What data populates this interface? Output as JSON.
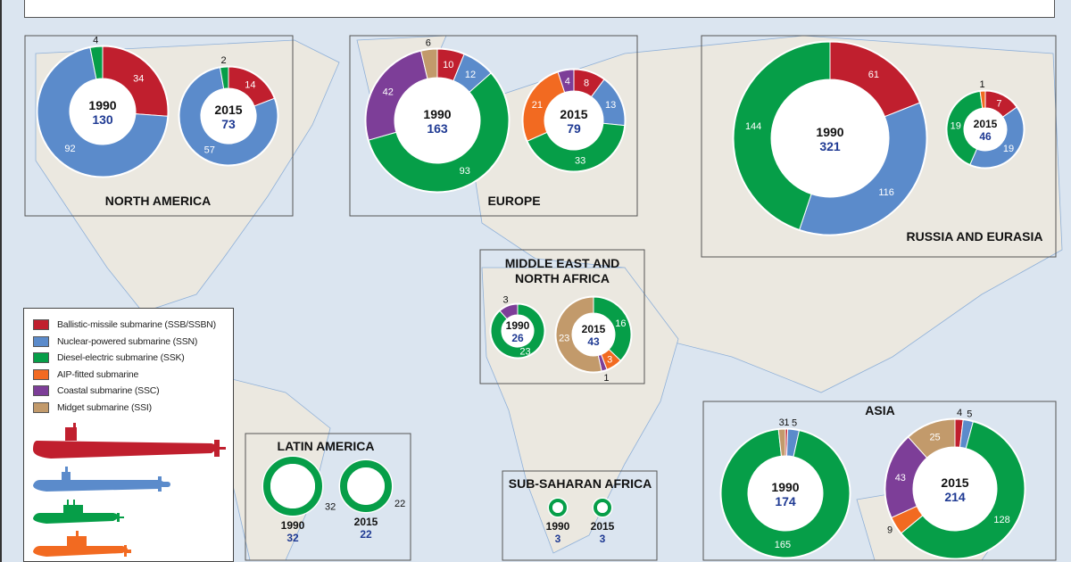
{
  "colors": {
    "SSB": "#c01f2e",
    "SSN": "#5b8bcb",
    "SSK": "#069e48",
    "AIP": "#f26a21",
    "SSC": "#7d3e98",
    "SSI": "#c29a6b",
    "total_text": "#1f3a93",
    "ocean": "#dbe5f0",
    "land": "#ebe8e0"
  },
  "legend": {
    "items": [
      {
        "key": "SSB",
        "label": "Ballistic-missile submarine (SSB/SSBN)"
      },
      {
        "key": "SSN",
        "label": "Nuclear-powered submarine (SSN)"
      },
      {
        "key": "SSK",
        "label": "Diesel-electric submarine (SSK)"
      },
      {
        "key": "AIP",
        "label": "AIP-fitted submarine"
      },
      {
        "key": "SSC",
        "label": "Coastal submarine (SSC)"
      },
      {
        "key": "SSI",
        "label": "Midget submarine (SSI)"
      }
    ],
    "silhouettes": [
      "SSB",
      "SSN",
      "SSK",
      "AIP"
    ]
  },
  "chart_data": {
    "type": "pie",
    "variant": "donut",
    "segment_order": [
      "SSB",
      "SSN",
      "SSK",
      "AIP",
      "SSC",
      "SSI"
    ],
    "regions": [
      {
        "name": "NORTH AMERICA",
        "charts": [
          {
            "year": "1990",
            "total": 130,
            "values": {
              "SSB": 34,
              "SSN": 92,
              "SSK": 4
            }
          },
          {
            "year": "2015",
            "total": 73,
            "values": {
              "SSB": 14,
              "SSN": 57,
              "SSK": 2
            }
          }
        ]
      },
      {
        "name": "EUROPE",
        "charts": [
          {
            "year": "1990",
            "total": 163,
            "values": {
              "SSB": 10,
              "SSN": 12,
              "SSK": 93,
              "SSC": 42,
              "SSI": 6
            }
          },
          {
            "year": "2015",
            "total": 79,
            "values": {
              "SSB": 8,
              "SSN": 13,
              "SSK": 33,
              "AIP": 21,
              "SSC": 4
            }
          }
        ]
      },
      {
        "name": "RUSSIA AND EURASIA",
        "charts": [
          {
            "year": "1990",
            "total": 321,
            "values": {
              "SSB": 61,
              "SSN": 116,
              "SSK": 144
            }
          },
          {
            "year": "2015",
            "total": 46,
            "values": {
              "SSB": 7,
              "SSN": 19,
              "SSK": 19,
              "AIP": 1
            }
          }
        ]
      },
      {
        "name": "MIDDLE EAST AND NORTH AFRICA",
        "charts": [
          {
            "year": "1990",
            "total": 26,
            "values": {
              "SSK": 23,
              "SSC": 3
            }
          },
          {
            "year": "2015",
            "total": 43,
            "values": {
              "SSK": 16,
              "AIP": 3,
              "SSC": 1,
              "SSI": 23
            }
          }
        ]
      },
      {
        "name": "LATIN AMERICA",
        "charts": [
          {
            "year": "1990",
            "total": 32,
            "values": {
              "SSK": 32
            }
          },
          {
            "year": "2015",
            "total": 22,
            "values": {
              "SSK": 22
            }
          }
        ]
      },
      {
        "name": "SUB-SAHARAN AFRICA",
        "charts": [
          {
            "year": "1990",
            "total": 3,
            "values": {
              "SSK": 3
            }
          },
          {
            "year": "2015",
            "total": 3,
            "values": {
              "SSK": 3
            }
          }
        ]
      },
      {
        "name": "ASIA",
        "charts": [
          {
            "year": "1990",
            "total": 174,
            "values": {
              "SSB": 1,
              "SSN": 5,
              "SSK": 165,
              "SSI": 3
            }
          },
          {
            "year": "2015",
            "total": 214,
            "values": {
              "SSB": 4,
              "SSN": 5,
              "SSK": 128,
              "AIP": 9,
              "SSC": 43,
              "SSI": 25
            }
          }
        ]
      }
    ]
  }
}
